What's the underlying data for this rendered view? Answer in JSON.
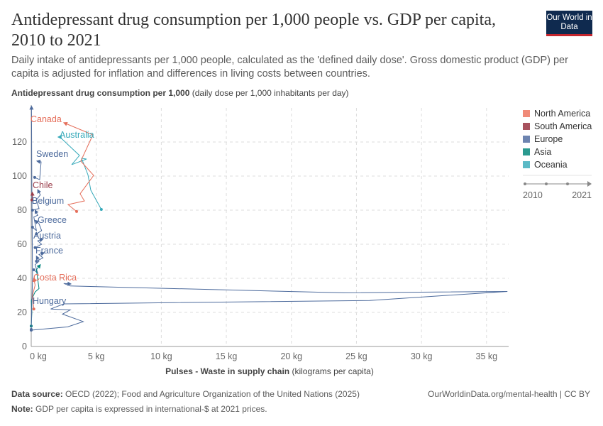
{
  "header": {
    "title": "Antidepressant drug consumption per 1,000 people vs. GDP per capita, 2010 to 2021",
    "subtitle": "Daily intake of antidepressants per 1,000 people, calculated as the 'defined daily dose'. Gross domestic product (GDP) per capita is adjusted for inflation and differences in living costs between countries.",
    "logo": "Our World in Data"
  },
  "footer": {
    "source_label": "Data source:",
    "source": "OECD (2022); Food and Agriculture Organization of the United Nations (2025)",
    "url": "OurWorldinData.org/mental-health | CC BY",
    "note_label": "Note:",
    "note": "GDP per capita is expressed in international-$ at 2021 prices."
  },
  "colors": {
    "North America": "#e56e5a",
    "South America": "#9a3d4a",
    "Europe": "#4c6a9c",
    "Asia": "#00847e",
    "Oceania": "#38aaba"
  },
  "timeline": {
    "start": "2010",
    "end": "2021"
  },
  "chart_data": {
    "type": "scatter",
    "connected": true,
    "ylabel_bold": "Antidepressant drug consumption per 1,000",
    "ylabel_unit": "(daily dose per 1,000 inhabitants per day)",
    "xlabel_bold": "Pulses - Waste in supply chain",
    "xlabel_unit": "(kilograms per capita)",
    "xlim": [
      0,
      36.7
    ],
    "ylim": [
      0,
      140
    ],
    "grid": true,
    "x_ticks": [
      "0 kg",
      "5 kg",
      "10 kg",
      "15 kg",
      "20 kg",
      "25 kg",
      "30 kg",
      "35 kg"
    ],
    "x_tick_values": [
      0,
      5,
      10,
      15,
      20,
      25,
      30,
      35
    ],
    "y_ticks": [
      "0",
      "20",
      "40",
      "60",
      "80",
      "100",
      "120"
    ],
    "y_tick_values": [
      0,
      20,
      40,
      60,
      80,
      100,
      120
    ],
    "legend": [
      "North America",
      "South America",
      "Europe",
      "Asia",
      "Oceania"
    ],
    "legend_position": "right",
    "series": [
      {
        "name": "Canada",
        "region": "North America",
        "points": [
          [
            3.49,
            79.2
          ],
          [
            2.83,
            83.3
          ],
          [
            4.09,
            85.4
          ],
          [
            3.76,
            89.6
          ],
          [
            4.8,
            100.4
          ],
          [
            3.81,
            108.8
          ],
          [
            4.74,
            124.2
          ],
          [
            2.51,
            131.3
          ]
        ]
      },
      {
        "name": "Australia",
        "region": "Oceania",
        "points": [
          [
            5.39,
            80.4
          ],
          [
            4.58,
            91.7
          ],
          [
            4.36,
            100.8
          ],
          [
            3.87,
            110.4
          ],
          [
            4.25,
            110
          ],
          [
            3.11,
            106.7
          ],
          [
            3.71,
            112.1
          ],
          [
            2.21,
            122.9
          ],
          [
            2.07,
            122.9
          ]
        ]
      },
      {
        "name": "Sweden",
        "region": "Europe",
        "points": [
          [
            0.27,
            99.2
          ],
          [
            0.65,
            97.9
          ],
          [
            0.76,
            108.3
          ],
          [
            0.44,
            108.8
          ]
        ]
      },
      {
        "name": "Chile",
        "region": "South America",
        "points": [
          [
            0.05,
            86
          ],
          [
            0.1,
            88
          ],
          [
            0.08,
            90.5
          ]
        ]
      },
      {
        "name": "Belgium",
        "region": "Europe",
        "points": [
          [
            0.1,
            80
          ],
          [
            0.6,
            81
          ],
          [
            0.4,
            86
          ],
          [
            0.7,
            89
          ],
          [
            0.5,
            92
          ]
        ]
      },
      {
        "name": "Greece",
        "region": "Europe",
        "points": [
          [
            0.4,
            66
          ],
          [
            0.8,
            68
          ],
          [
            0.6,
            72
          ],
          [
            0.3,
            74
          ]
        ]
      },
      {
        "name": "Austria",
        "region": "Europe",
        "points": [
          [
            0.3,
            58
          ],
          [
            0.8,
            60
          ],
          [
            0.5,
            62
          ],
          [
            0.9,
            63
          ]
        ]
      },
      {
        "name": "France",
        "region": "Europe",
        "points": [
          [
            0.4,
            50
          ],
          [
            0.9,
            52
          ],
          [
            0.6,
            54
          ],
          [
            1.0,
            55
          ]
        ]
      },
      {
        "name": "Costa Rica",
        "region": "North America",
        "points": [
          [
            0.2,
            22
          ],
          [
            0.1,
            30
          ],
          [
            0.3,
            36
          ],
          [
            0.2,
            40
          ]
        ]
      },
      {
        "name": "Hungary",
        "region": "Europe",
        "points": [
          [
            0,
            9.6
          ],
          [
            2.8,
            11.5
          ],
          [
            4.0,
            14.6
          ],
          [
            2.4,
            19
          ],
          [
            3.0,
            21.5
          ],
          [
            1.5,
            22
          ],
          [
            2.5,
            25
          ],
          [
            26,
            27
          ],
          [
            36.6,
            32.3
          ],
          [
            24,
            31.5
          ],
          [
            3.0,
            35.5
          ],
          [
            2.5,
            37
          ],
          [
            3.05,
            36.7
          ]
        ]
      },
      {
        "region": "Europe",
        "points": [
          [
            0,
            10
          ],
          [
            0.1,
            40
          ],
          [
            0.05,
            90
          ],
          [
            0.02,
            141
          ]
        ]
      },
      {
        "region": "Asia",
        "points": [
          [
            0,
            12
          ],
          [
            0.05,
            20
          ],
          [
            0,
            27
          ],
          [
            0.3,
            32
          ],
          [
            0.6,
            34
          ],
          [
            0.4,
            45
          ],
          [
            0.7,
            48
          ]
        ]
      },
      {
        "region": "Europe",
        "points": [
          [
            0.2,
            45
          ],
          [
            0.5,
            43
          ],
          [
            0.3,
            48
          ],
          [
            0.6,
            50
          ],
          [
            0.4,
            53
          ]
        ]
      },
      {
        "region": "Europe",
        "points": [
          [
            0.1,
            70
          ],
          [
            0.4,
            68
          ],
          [
            0.2,
            76
          ],
          [
            0.5,
            77
          ],
          [
            0.3,
            80
          ]
        ]
      }
    ]
  }
}
